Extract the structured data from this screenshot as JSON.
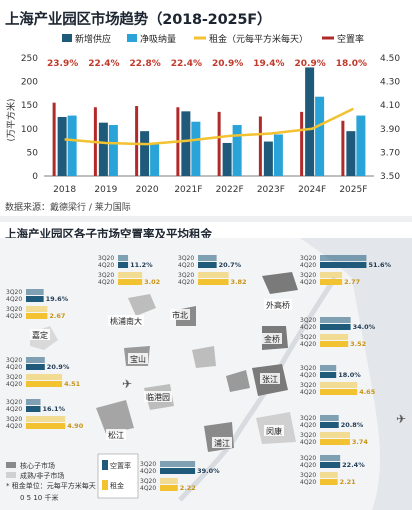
{
  "top": {
    "title": "上海产业园区市场趋势（2018-2025F）",
    "source": "数据来源：戴德梁行 / 莱力国际",
    "legend": [
      "新增供应",
      "净吸纳量",
      "租金（元每平方米每天）",
      "空置率"
    ],
    "colors": {
      "supply": "#1f5a7a",
      "absorption": "#29a3d8",
      "rent": "#f2c230",
      "vacancy": "#b02a2a",
      "vacancy_label": "#c0392b"
    }
  },
  "chart_data": {
    "type": "bar",
    "title": "上海产业园区市场趋势（2018-2025F）",
    "categories": [
      "2018",
      "2019",
      "2020",
      "2021F",
      "2022F",
      "2023F",
      "2024F",
      "2025F"
    ],
    "ylabel": "(万平方米)",
    "ylim": [
      0,
      250
    ],
    "yticks": [
      0,
      50,
      100,
      150,
      200,
      250
    ],
    "y2lim": [
      3.5,
      4.5
    ],
    "y2ticks": [
      "3.50",
      "3.70",
      "3.90",
      "4.10",
      "4.30",
      "4.50"
    ],
    "series": [
      {
        "name": "新增供应",
        "type": "bar",
        "values": [
          125,
          113,
          95,
          137,
          70,
          73,
          230,
          95
        ]
      },
      {
        "name": "净吸纳量",
        "type": "bar",
        "values": [
          128,
          108,
          68,
          115,
          108,
          88,
          168,
          128
        ]
      },
      {
        "name": "租金（元每平方米每天）",
        "type": "line",
        "axis": "right",
        "values": [
          3.81,
          3.78,
          3.77,
          3.8,
          3.84,
          3.86,
          3.9,
          4.07
        ]
      },
      {
        "name": "空置率",
        "type": "vacancy",
        "values": [
          23.9,
          22.4,
          22.8,
          22.4,
          20.9,
          19.4,
          20.9,
          18.0
        ],
        "labels": [
          "23.9%",
          "22.4%",
          "22.8%",
          "22.4%",
          "20.9%",
          "19.4%",
          "20.9%",
          "18.0%"
        ]
      }
    ]
  },
  "map": {
    "title": "上海产业园区各子市场空置率及平均租金",
    "legend_core": "核心子市场",
    "legend_noncore": "成熟/非子市场",
    "legend_vacancy": "空置率",
    "legend_rent": "租金",
    "note": "* 租金单位：元每平方米每天",
    "scale": "0   5   10 千米",
    "districts": [
      "嘉定",
      "桃浦南大",
      "市北",
      "外高桥",
      "金桥",
      "宝山",
      "临港园",
      "张江",
      "松江",
      "浦江",
      "闵康"
    ],
    "blocks": [
      {
        "name": "block-taopu",
        "q": [
          "3Q20",
          "4Q20",
          "3Q20",
          "4Q20"
        ],
        "vac": "11.2%",
        "rent": "3.02"
      },
      {
        "name": "block-shibei",
        "q": [
          "3Q20",
          "4Q20",
          "3Q20",
          "4Q20"
        ],
        "vac": "20.7%",
        "rent": "3.82"
      },
      {
        "name": "block-waigaoqiao",
        "q": [
          "3Q20",
          "4Q20",
          "3Q20",
          "4Q20"
        ],
        "vac": "51.6%",
        "rent": "2.77"
      },
      {
        "name": "block-jiading",
        "q": [
          "3Q20",
          "4Q20",
          "3Q20",
          "4Q20"
        ],
        "vac": "19.6%",
        "rent": "2.67"
      },
      {
        "name": "block-jinqiao",
        "q": [
          "3Q20",
          "4Q20",
          "3Q20",
          "4Q20"
        ],
        "vac": "34.0%",
        "rent": "3.52"
      },
      {
        "name": "block-baoshan",
        "q": [
          "3Q20",
          "4Q20",
          "3Q20",
          "4Q20"
        ],
        "vac": "20.9%",
        "rent": "4.51"
      },
      {
        "name": "block-zhangjiang",
        "q": [
          "3Q20",
          "4Q20",
          "3Q20",
          "4Q20"
        ],
        "vac": "18.0%",
        "rent": "4.65"
      },
      {
        "name": "block-lingang",
        "q": [
          "3Q20",
          "4Q20",
          "3Q20",
          "4Q20"
        ],
        "vac": "16.1%",
        "rent": "4.90"
      },
      {
        "name": "block-minkang",
        "q": [
          "3Q20",
          "4Q20",
          "3Q20",
          "4Q20"
        ],
        "vac": "20.8%",
        "rent": "3.74"
      },
      {
        "name": "block-songjiang",
        "q": [
          "3Q20",
          "4Q20",
          "3Q20",
          "4Q20"
        ],
        "vac": "39.0%",
        "rent": "2.22"
      },
      {
        "name": "block-pujiang",
        "q": [
          "3Q20",
          "4Q20",
          "3Q20",
          "4Q20"
        ],
        "vac": "22.4%",
        "rent": "2.21"
      }
    ]
  }
}
